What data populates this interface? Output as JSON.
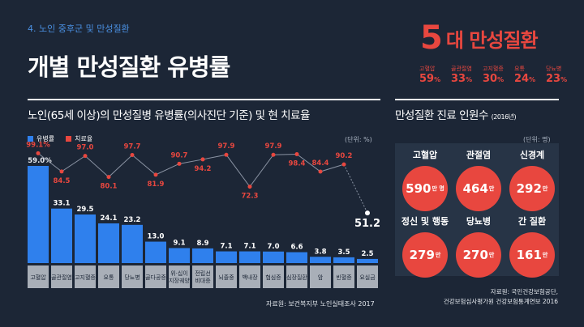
{
  "header": {
    "section_label": "4. 노인 중후군 및 만성질환",
    "title": "개별 만성질환 유병률"
  },
  "top_summary": {
    "big_number": "5",
    "big_text": "대 만성질환",
    "items": [
      {
        "label": "고혈압",
        "value": "59",
        "unit": "%"
      },
      {
        "label": "골관절염",
        "value": "33",
        "unit": "%"
      },
      {
        "label": "고지혈증",
        "value": "30",
        "unit": "%"
      },
      {
        "label": "요통",
        "value": "24",
        "unit": "%"
      },
      {
        "label": "당뇨병",
        "value": "23",
        "unit": "%"
      }
    ]
  },
  "left_panel": {
    "title": "노인(65세 이상)의 만성질병 유병률(의사진단 기준) 및 현 치료율",
    "unit": "(단위: %)",
    "source": "자료원: 보건복지부 노인실태조사 2017"
  },
  "chart_data": {
    "type": "bar",
    "categories": [
      "고혈압",
      "골관절염",
      "고지혈증",
      "요통",
      "당뇨병",
      "골다공증",
      "위·십이지장궤양",
      "전립선비대증",
      "뇌졸중",
      "백내장",
      "협심증",
      "심장질환",
      "암",
      "빈혈증",
      "요실금"
    ],
    "series": [
      {
        "name": "유병률",
        "type": "bar",
        "color": "#2f80ed",
        "values": [
          59.0,
          33.1,
          29.5,
          24.1,
          23.2,
          13.0,
          9.1,
          8.9,
          7.1,
          7.1,
          7.0,
          6.6,
          3.8,
          3.5,
          2.5
        ],
        "labels": [
          "59.0%",
          "33.1",
          "29.5",
          "24.1",
          "23.2",
          "13.0",
          "9.1",
          "8.9",
          "7.1",
          "7.1",
          "7.0",
          "6.6",
          "3.8",
          "3.5",
          "2.5"
        ]
      },
      {
        "name": "치료율",
        "type": "line",
        "color": "#e8473f",
        "values": [
          99.1,
          84.5,
          97.0,
          80.1,
          97.7,
          81.9,
          90.7,
          94.2,
          97.9,
          72.3,
          97.9,
          98.4,
          84.4,
          90.2,
          51.2
        ],
        "labels": [
          "99.1%",
          "84.5",
          "97.0",
          "80.1",
          "97.7",
          "81.9",
          "90.7",
          "94.2",
          "97.9",
          "72.3",
          "97.9",
          "98.4",
          "84.4",
          "90.2",
          "51.2"
        ]
      }
    ],
    "ylim": [
      0,
      100
    ]
  },
  "right_panel": {
    "title": "만성질환 진료 인원수",
    "title_year": "(2016년)",
    "unit": "(단위: 명)",
    "items": [
      {
        "name": "고혈압",
        "value": "590",
        "unit": "만 명"
      },
      {
        "name": "관절염",
        "value": "464",
        "unit": "만"
      },
      {
        "name": "신경계",
        "value": "292",
        "unit": "만"
      },
      {
        "name": "정신 및 행동",
        "value": "279",
        "unit": "만"
      },
      {
        "name": "당뇨병",
        "value": "270",
        "unit": "만"
      },
      {
        "name": "간 질환",
        "value": "161",
        "unit": "만"
      }
    ],
    "source_line1": "자료원: 국민건강보험공단,",
    "source_line2": "건강보험심사평가원 건강보험통계연보 2016"
  },
  "colors": {
    "background": "#1c2636",
    "accent_red": "#e8473f",
    "accent_blue": "#2f80ed",
    "panel": "#273446"
  }
}
